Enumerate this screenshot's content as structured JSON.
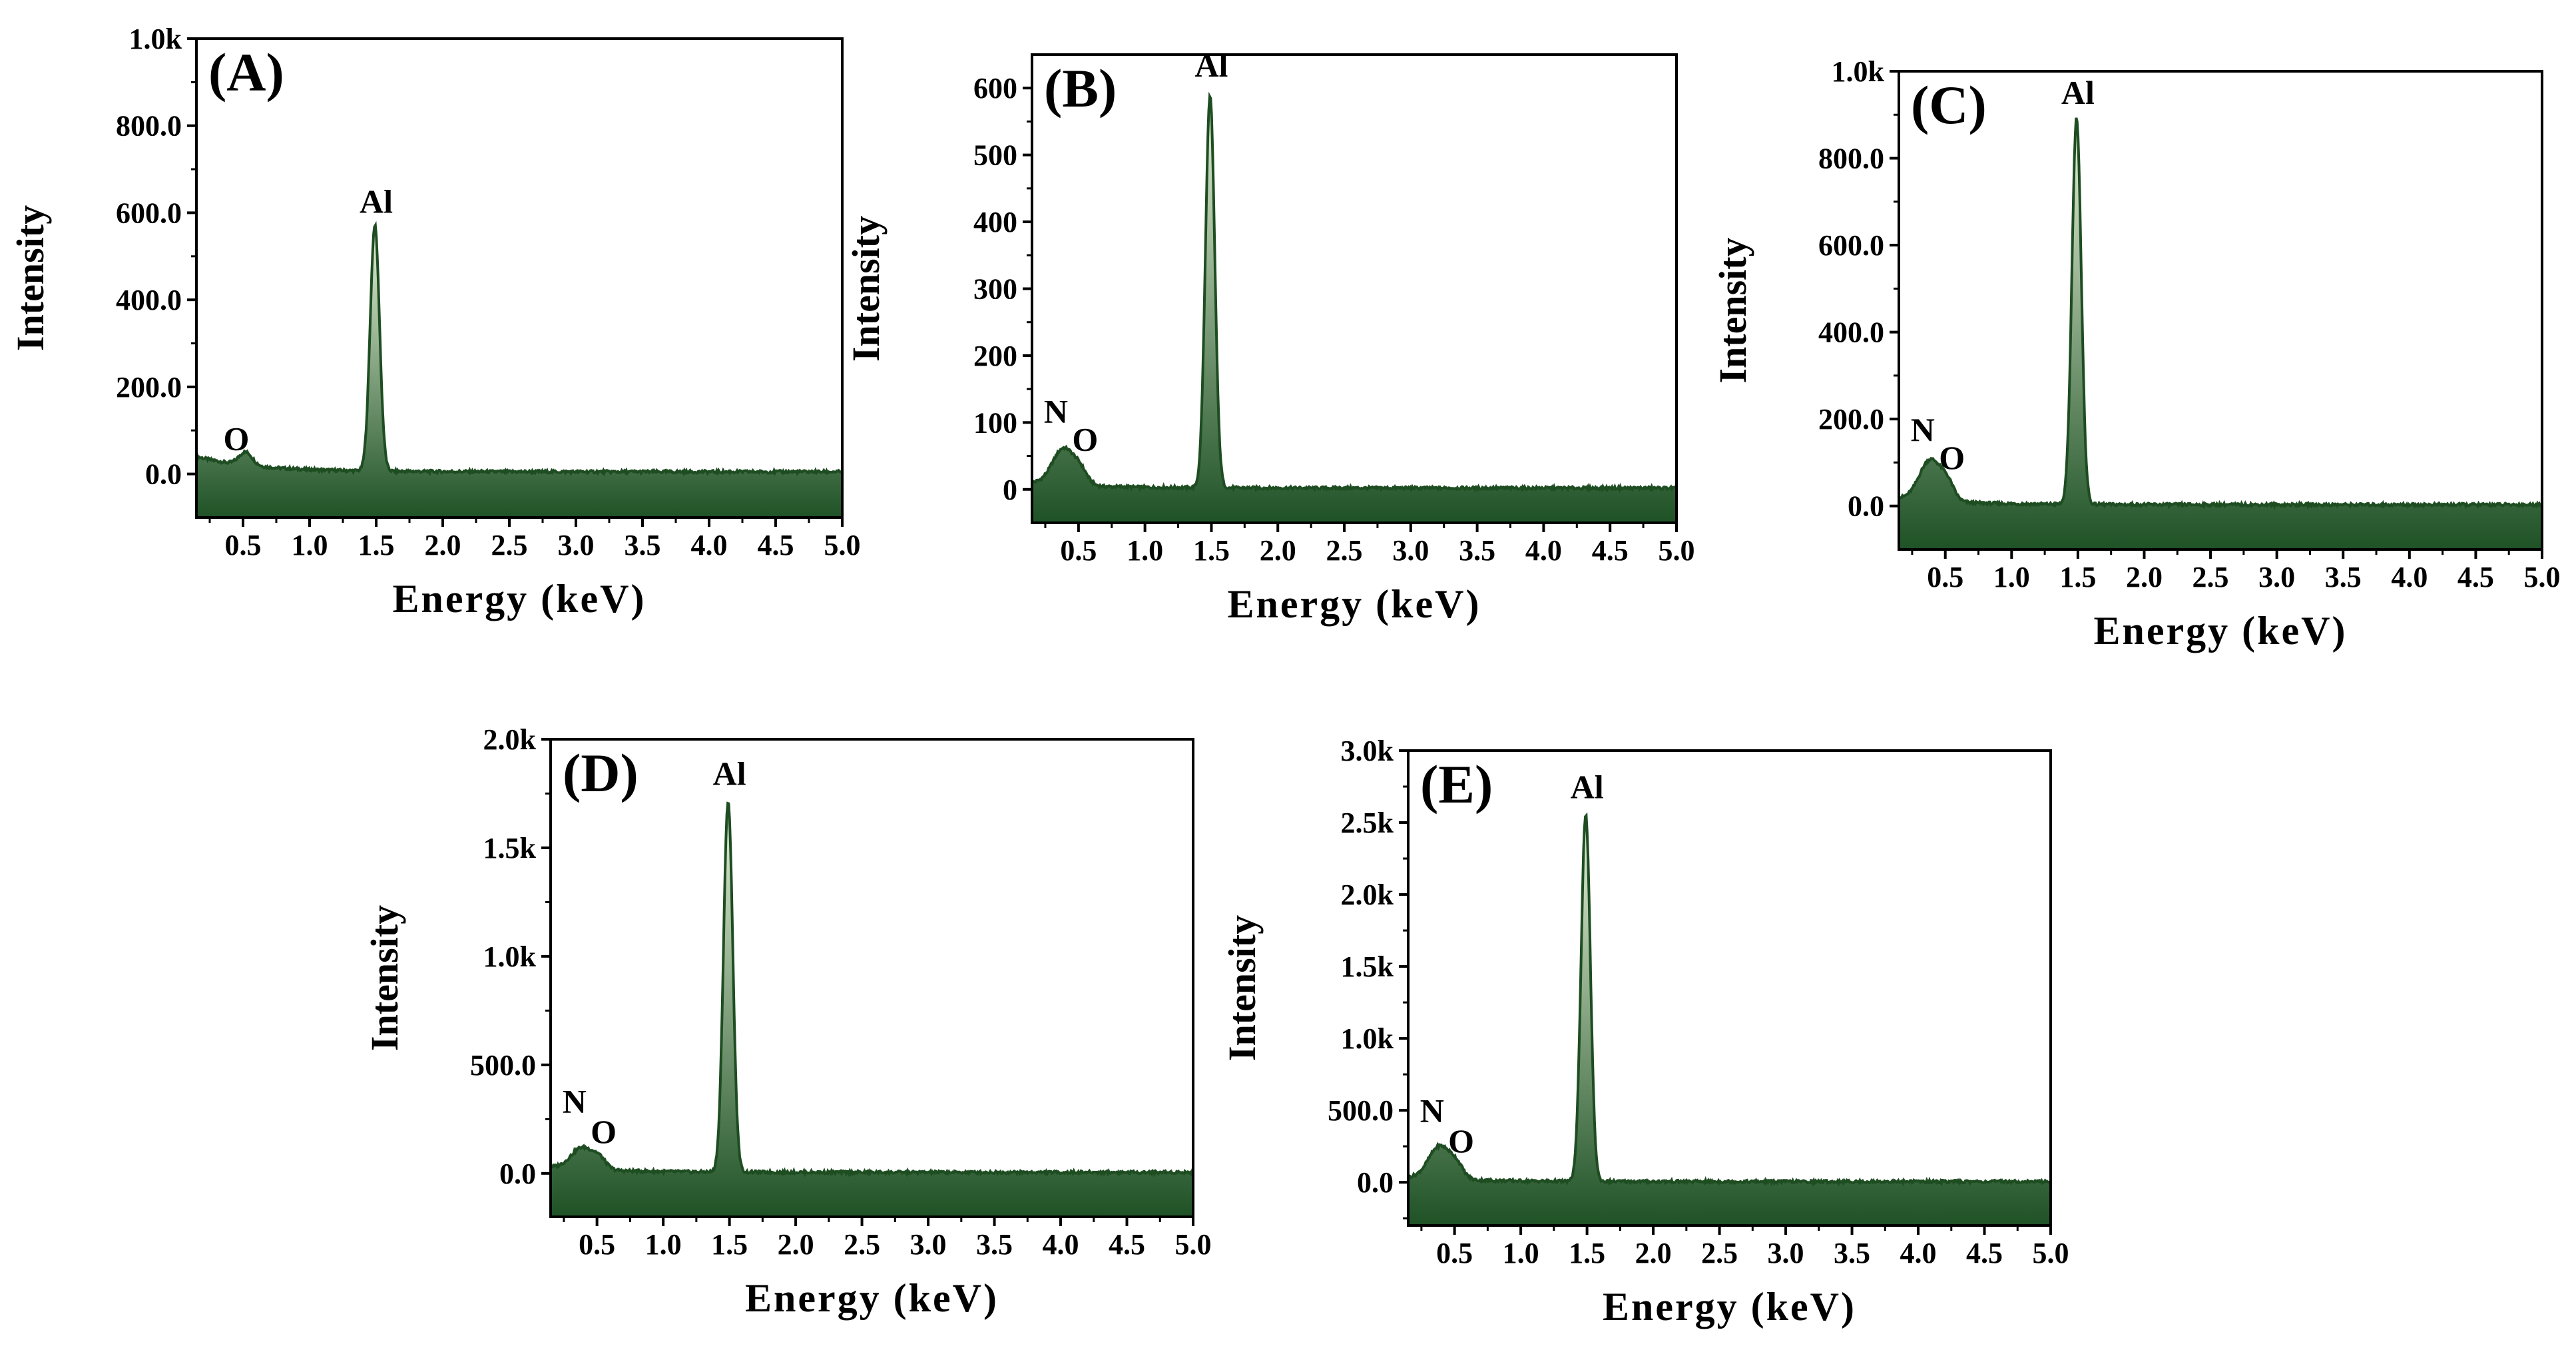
{
  "figure": {
    "colors": {
      "line": "#1e4d22",
      "fill_top": "#e6f2d8",
      "fill_bottom": "#1f5226",
      "axis": "#000000"
    }
  },
  "chart_data": [
    {
      "panel": "(A)",
      "type": "area",
      "xlabel": "Energy (keV)",
      "ylabel": "Intensity",
      "xlim": [
        0.15,
        5.0
      ],
      "ylim": [
        -100,
        1000
      ],
      "xticks": [
        0.5,
        1.0,
        1.5,
        2.0,
        2.5,
        3.0,
        3.5,
        4.0,
        4.5,
        5.0
      ],
      "xtick_labels": [
        "0.5",
        "1.0",
        "1.5",
        "2.0",
        "2.5",
        "3.0",
        "3.5",
        "4.0",
        "4.5",
        "5.0"
      ],
      "yticks": [
        0,
        200,
        400,
        600,
        800,
        1000
      ],
      "ytick_labels": [
        "0.0",
        "200.0",
        "400.0",
        "600.0",
        "800.0",
        "1.0k"
      ],
      "spectrum": {
        "baseline": 5,
        "n_height": 0,
        "o_height": 30,
        "al_height": 565,
        "low_bump": 35
      },
      "peak_labels": [
        {
          "text": "O",
          "x": 0.45,
          "y": 55
        },
        {
          "text": "Al",
          "x": 1.5,
          "y": 600
        }
      ]
    },
    {
      "panel": "(B)",
      "type": "area",
      "xlabel": "Energy (keV)",
      "ylabel": "Intensity",
      "xlim": [
        0.15,
        5.0
      ],
      "ylim": [
        -50,
        650
      ],
      "xticks": [
        0.5,
        1.0,
        1.5,
        2.0,
        2.5,
        3.0,
        3.5,
        4.0,
        4.5,
        5.0
      ],
      "xtick_labels": [
        "0.5",
        "1.0",
        "1.5",
        "2.0",
        "2.5",
        "3.0",
        "3.5",
        "4.0",
        "4.5",
        "5.0"
      ],
      "yticks": [
        0,
        100,
        200,
        300,
        400,
        500,
        600
      ],
      "ytick_labels": [
        "0",
        "100",
        "200",
        "300",
        "400",
        "500",
        "600"
      ],
      "spectrum": {
        "baseline": 2,
        "n_height": 55,
        "o_height": 15,
        "al_height": 585,
        "low_bump": 8
      },
      "peak_labels": [
        {
          "text": "N",
          "x": 0.33,
          "y": 100
        },
        {
          "text": "O",
          "x": 0.55,
          "y": 58
        },
        {
          "text": "Al",
          "x": 1.5,
          "y": 617
        }
      ]
    },
    {
      "panel": "(C)",
      "type": "area",
      "xlabel": "Energy (keV)",
      "ylabel": "Intensity",
      "xlim": [
        0.15,
        5.0
      ],
      "ylim": [
        -100,
        1000
      ],
      "xticks": [
        0.5,
        1.0,
        1.5,
        2.0,
        2.5,
        3.0,
        3.5,
        4.0,
        4.5,
        5.0
      ],
      "xtick_labels": [
        "0.5",
        "1.0",
        "1.5",
        "2.0",
        "2.5",
        "3.0",
        "3.5",
        "4.0",
        "4.5",
        "5.0"
      ],
      "yticks": [
        0,
        200,
        400,
        600,
        800,
        1000
      ],
      "ytick_labels": [
        "0.0",
        "200.0",
        "400.0",
        "600.0",
        "800.0",
        "1.0k"
      ],
      "spectrum": {
        "baseline": 3,
        "n_height": 95,
        "o_height": 30,
        "al_height": 890,
        "low_bump": 15
      },
      "peak_labels": [
        {
          "text": "N",
          "x": 0.33,
          "y": 150
        },
        {
          "text": "O",
          "x": 0.55,
          "y": 85
        },
        {
          "text": "Al",
          "x": 1.5,
          "y": 925
        }
      ]
    },
    {
      "panel": "(D)",
      "type": "area",
      "xlabel": "Energy (keV)",
      "ylabel": "Intensity",
      "xlim": [
        0.15,
        5.0
      ],
      "ylim": [
        -200,
        2000
      ],
      "xticks": [
        0.5,
        1.0,
        1.5,
        2.0,
        2.5,
        3.0,
        3.5,
        4.0,
        4.5,
        5.0
      ],
      "xtick_labels": [
        "0.5",
        "1.0",
        "1.5",
        "2.0",
        "2.5",
        "3.0",
        "3.5",
        "4.0",
        "4.5",
        "5.0"
      ],
      "yticks": [
        0,
        500,
        1000,
        1500,
        2000
      ],
      "ytick_labels": [
        "0.0",
        "500.0",
        "1.0k",
        "1.5k",
        "2.0k"
      ],
      "spectrum": {
        "baseline": 5,
        "n_height": 100,
        "o_height": 40,
        "al_height": 1710,
        "low_bump": 25
      },
      "peak_labels": [
        {
          "text": "N",
          "x": 0.33,
          "y": 280
        },
        {
          "text": "O",
          "x": 0.55,
          "y": 140
        },
        {
          "text": "Al",
          "x": 1.5,
          "y": 1790
        }
      ]
    },
    {
      "panel": "(E)",
      "type": "area",
      "xlabel": "Energy (keV)",
      "ylabel": "Intensity",
      "xlim": [
        0.15,
        5.0
      ],
      "ylim": [
        -300,
        3000
      ],
      "xticks": [
        0.5,
        1.0,
        1.5,
        2.0,
        2.5,
        3.0,
        3.5,
        4.0,
        4.5,
        5.0
      ],
      "xtick_labels": [
        "0.5",
        "1.0",
        "1.5",
        "2.0",
        "2.5",
        "3.0",
        "3.5",
        "4.0",
        "4.5",
        "5.0"
      ],
      "yticks": [
        0,
        500,
        1000,
        1500,
        2000,
        2500,
        3000
      ],
      "ytick_labels": [
        "0.0",
        "500.0",
        "1.0k",
        "1.5k",
        "2.0k",
        "2.5k",
        "3.0k"
      ],
      "spectrum": {
        "baseline": 5,
        "n_height": 230,
        "o_height": 70,
        "al_height": 2550,
        "low_bump": 30
      },
      "peak_labels": [
        {
          "text": "N",
          "x": 0.33,
          "y": 420
        },
        {
          "text": "O",
          "x": 0.55,
          "y": 210
        },
        {
          "text": "Al",
          "x": 1.5,
          "y": 2670
        }
      ]
    }
  ]
}
